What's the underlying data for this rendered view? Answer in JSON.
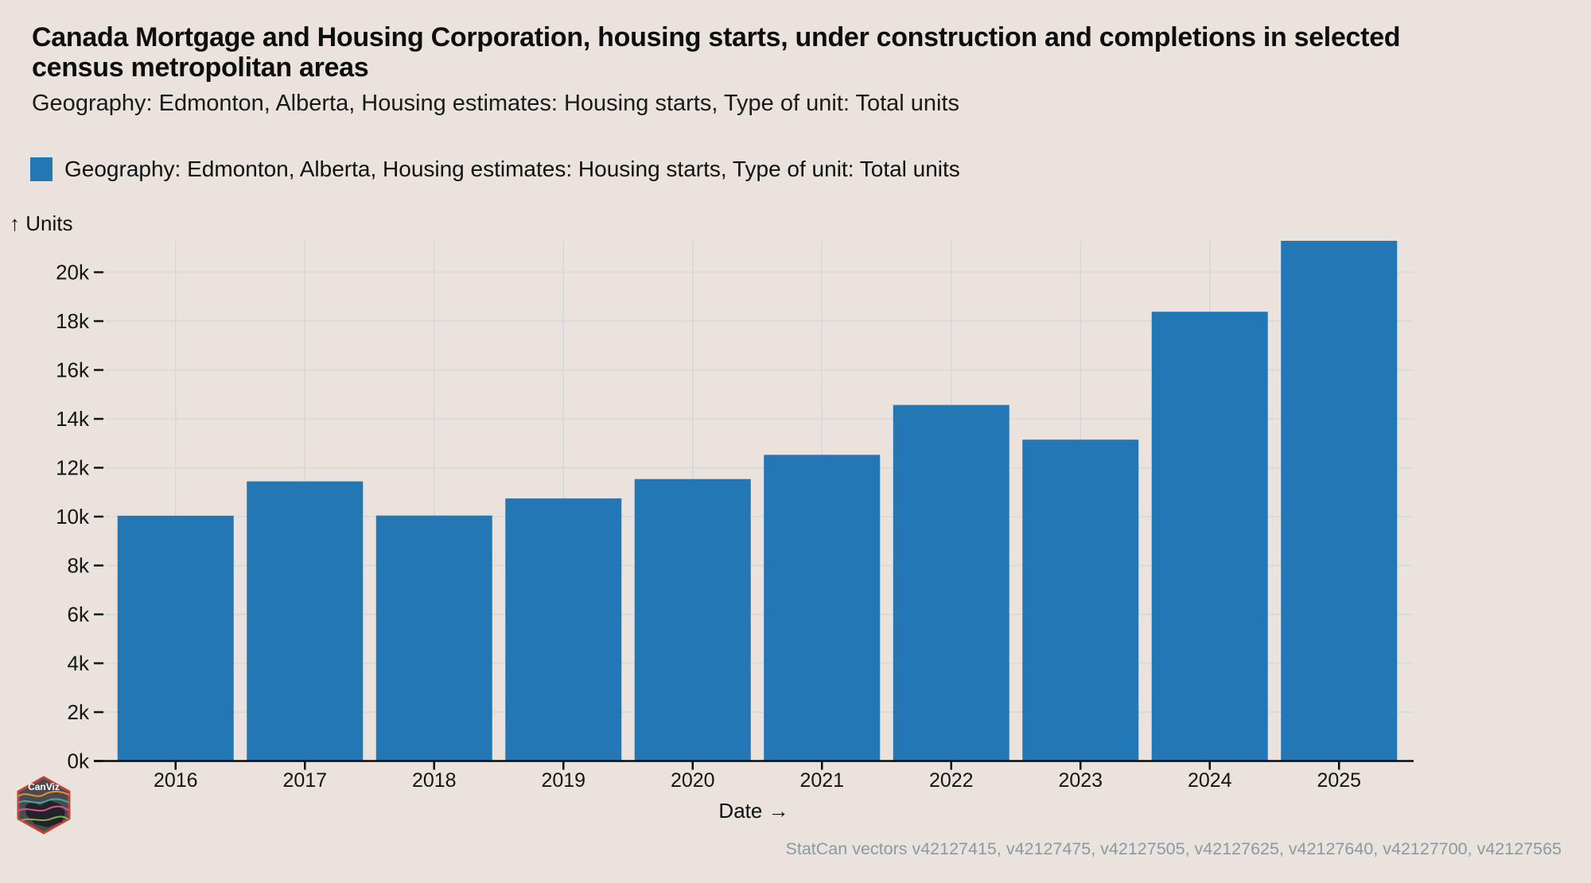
{
  "header": {
    "title": "Canada Mortgage and Housing Corporation, housing starts, under construction and completions in selected census metropolitan areas",
    "title_lines": [
      "Canada Mortgage and Housing Corporation, housing starts, under construction and completions in selected",
      "census metropolitan areas"
    ],
    "subtitle": "Geography: Edmonton, Alberta, Housing estimates: Housing starts, Type of unit: Total units"
  },
  "legend": {
    "label": "Geography: Edmonton, Alberta, Housing estimates: Housing starts, Type of unit: Total units",
    "swatch_color": "#2277b4"
  },
  "axes": {
    "y_title": "↑ Units",
    "x_title": "Date →"
  },
  "caption": {
    "text": "StatCan vectors v42127415, v42127475, v42127505, v42127625, v42127640, v42127700, v42127565"
  },
  "logo": {
    "text": "CanViz"
  },
  "colors": {
    "background": "#e9e2dd",
    "bar": "#2277b4",
    "gridline": "#d4d7db",
    "axis": "#0a0a0a",
    "tick_label": "#141414",
    "caption": "#8b9aa0",
    "logo_border": "#c14335",
    "logo_fill": "#4b4b4f"
  },
  "chart_data": {
    "type": "bar",
    "title": "Canada Mortgage and Housing Corporation, housing starts, under construction and completions in selected census metropolitan areas",
    "subtitle": "Geography: Edmonton, Alberta, Housing estimates: Housing starts, Type of unit: Total units",
    "categories": [
      "2016",
      "2017",
      "2018",
      "2019",
      "2020",
      "2021",
      "2022",
      "2023",
      "2024",
      "2025"
    ],
    "series": [
      {
        "name": "Geography: Edmonton, Alberta, Housing estimates: Housing starts, Type of unit: Total units",
        "values": [
          10036,
          11441,
          10043,
          10744,
          11536,
          12527,
          14567,
          13149,
          18384,
          21285
        ]
      }
    ],
    "xlabel": "Date",
    "ylabel": "Units",
    "ylim": [
      0,
      21285
    ],
    "yticks_values": [
      0,
      2000,
      4000,
      6000,
      8000,
      10000,
      12000,
      14000,
      16000,
      18000,
      20000
    ],
    "yticks_labels": [
      "0k",
      "2k",
      "4k",
      "6k",
      "8k",
      "10k",
      "12k",
      "14k",
      "16k",
      "18k",
      "20k"
    ],
    "grid": true,
    "legend_position": "top-left"
  }
}
